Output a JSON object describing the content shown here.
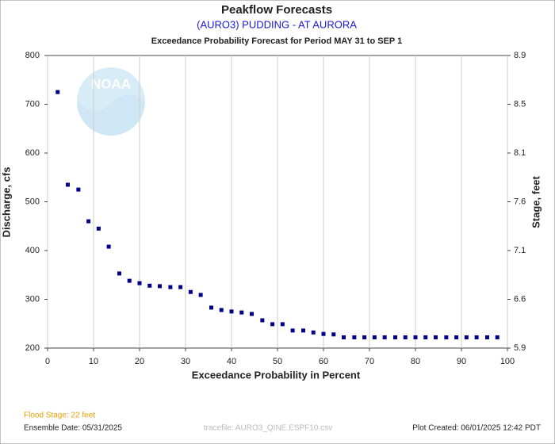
{
  "chart_data": {
    "type": "scatter",
    "title": "Peakflow Forecasts",
    "subtitle": "(AURO3) PUDDING - AT AURORA",
    "period": "Exceedance Probability Forecast for Period MAY 31 to SEP 1",
    "logo_text": "NOAA",
    "x_label": "Exceedance Probability in Percent",
    "y_label": "Discharge, cfs",
    "y2_label": "Stage, feet",
    "x": [
      2.2,
      4.4,
      6.7,
      8.9,
      11.1,
      13.3,
      15.6,
      17.8,
      20,
      22.2,
      24.4,
      26.7,
      28.9,
      31.1,
      33.3,
      35.6,
      37.8,
      40,
      42.2,
      44.4,
      46.7,
      48.9,
      51.1,
      53.3,
      55.6,
      57.8,
      60,
      62.2,
      64.4,
      66.7,
      68.9,
      71.1,
      73.3,
      75.6,
      77.8,
      80,
      82.2,
      84.4,
      86.7,
      88.9,
      91.1,
      93.3,
      95.6,
      97.8
    ],
    "values": [
      725,
      535,
      525,
      460,
      445,
      408,
      353,
      338,
      333,
      328,
      327,
      325,
      325,
      315,
      309,
      283,
      278,
      275,
      273,
      270,
      257,
      249,
      249,
      236,
      236,
      232,
      229,
      228,
      222,
      222,
      222,
      222,
      222,
      222,
      222,
      222,
      222,
      222,
      222,
      222,
      222,
      222,
      222,
      222
    ],
    "color": "#00008b",
    "xlim": [
      0,
      100
    ],
    "xticks": [
      0,
      10,
      20,
      30,
      40,
      50,
      60,
      70,
      80,
      90,
      100
    ],
    "ylim": [
      200,
      800
    ],
    "yticks": [
      200,
      300,
      400,
      500,
      600,
      700,
      800
    ],
    "y2ticks": [
      5.9,
      6.6,
      7.1,
      7.6,
      8.1,
      8.5,
      8.9
    ],
    "grid": true,
    "footer": {
      "flood_stage": "Flood Stage: 22 feet",
      "ensemble_date": "Ensemble Date: 05/31/2025",
      "tracefile": "tracefile: AURO3_QINE.ESPF10.csv",
      "created": "Plot Created: 06/01/2025 12:42 PDT"
    }
  }
}
